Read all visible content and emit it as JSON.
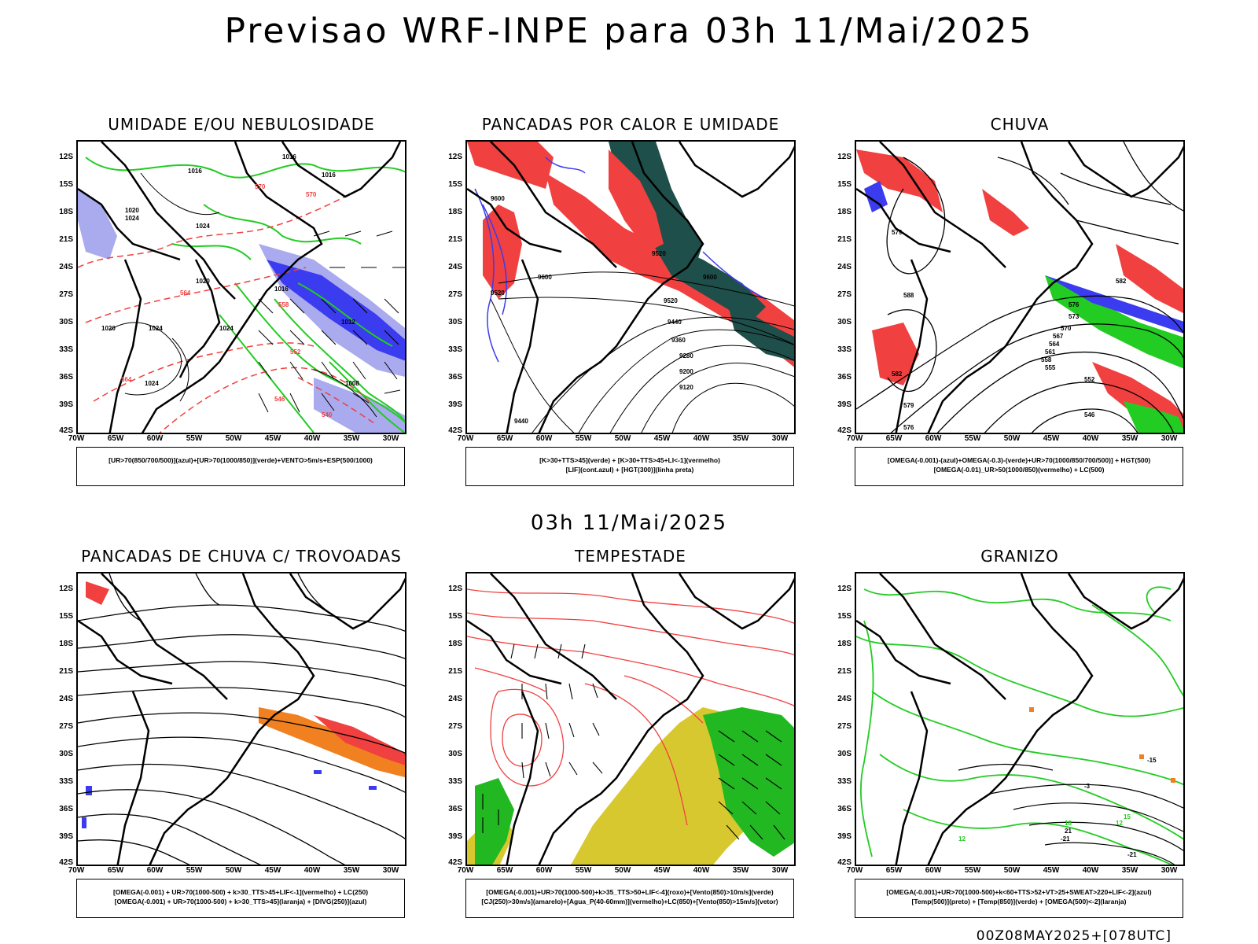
{
  "title": "Previsao WRF-INPE  para 03h 11/Mai/2025",
  "mid_title": "03h 11/Mai/2025",
  "footer": "00Z08MAY2025+[078UTC]",
  "lat_labels": [
    "12S",
    "15S",
    "18S",
    "21S",
    "24S",
    "27S",
    "30S",
    "33S",
    "36S",
    "39S",
    "42S"
  ],
  "lon_labels": [
    "70W",
    "65W",
    "60W",
    "55W",
    "50W",
    "45W",
    "40W",
    "35W",
    "30W"
  ],
  "panels": [
    {
      "title": "UMIDADE E/OU NEBULOSIDADE",
      "legend": [
        "[UR>70(850/700/500)](azul)+[UR>70(1000/850)](verde)+VENTO>5m/s+ESP(500/1000)"
      ]
    },
    {
      "title": "PANCADAS POR CALOR E UMIDADE",
      "legend": [
        "[K>30+TTS>45](verde) + [K>30+TTS>45+LI<-1](vermelho)",
        "[LIF](cont.azul) + [HGT(300)](linha preta)"
      ]
    },
    {
      "title": "CHUVA",
      "legend": [
        "[OMEGA(-0.001)-(azul)+OMEGA(-0.3)-(verde)+UR>70(1000/850/700/500)] + HGT(500)",
        "[OMEGA(-0.01)_UR>50(1000/850)(vermelho) + LC(500)"
      ]
    },
    {
      "title": "PANCADAS DE CHUVA C/ TROVOADAS",
      "legend": [
        "[OMEGA(-0.001) + UR>70(1000-500) + k>30_TTS>45+LIF<-1](vermelho) + LC(250)",
        "[OMEGA(-0.001) + UR>70(1000-500) + k>30_TTS>45](laranja) + [DIVG(250)](azul)"
      ]
    },
    {
      "title": "TEMPESTADE",
      "legend": [
        "[OMEGA(-0.001)+UR>70(1000-500)+k>35_TTS>50+LIF<-4](roxo)+[Vento(850)>10m/s](verde)",
        "[CJ(250)>30m/s](amarelo)+[Agua_P(40-60mm)](vermelho)+LC(850)+[Vento(850)>15m/s](vetor)"
      ]
    },
    {
      "title": "GRANIZO",
      "legend": [
        "[OMEGA(-0.001)+UR>70(1000-500)+k<60+TTS>52+VT>25+SWEAT>220+LIF<-2](azul)",
        "[Temp(500)](preto) + [Temp(850)](verde) + [OMEGA(500)<-2](laranja)"
      ]
    }
  ],
  "contour_labels": {
    "p1": [
      "1016",
      "1016",
      "1016",
      "1020",
      "1024",
      "1024",
      "1020",
      "1024",
      "1024",
      "1020",
      "1016",
      "1012",
      "1008",
      "1024",
      "570",
      "570",
      "564",
      "558",
      "552",
      "546",
      "540",
      "564"
    ],
    "p2": [
      "9600",
      "9600",
      "9520",
      "9440",
      "9360",
      "9280",
      "9200",
      "9120",
      "9520",
      "9600",
      "9520",
      "9440"
    ],
    "p3": [
      "582",
      "588",
      "579",
      "576",
      "573",
      "570",
      "567",
      "564",
      "561",
      "558",
      "555",
      "552",
      "546",
      "582",
      "579",
      "576"
    ],
    "p6": [
      "-3",
      "12",
      "15",
      "18",
      "21",
      "-21",
      "-21",
      "-15",
      "12"
    ]
  },
  "colors": {
    "blue": "#3b3bf0",
    "light_blue": "#aaaaee",
    "green": "#22cc22",
    "red": "#f04040",
    "dark_teal": "#1f4f4a",
    "orange": "#f08020",
    "yellow": "#d8c830",
    "bright_green": "#22b822"
  }
}
